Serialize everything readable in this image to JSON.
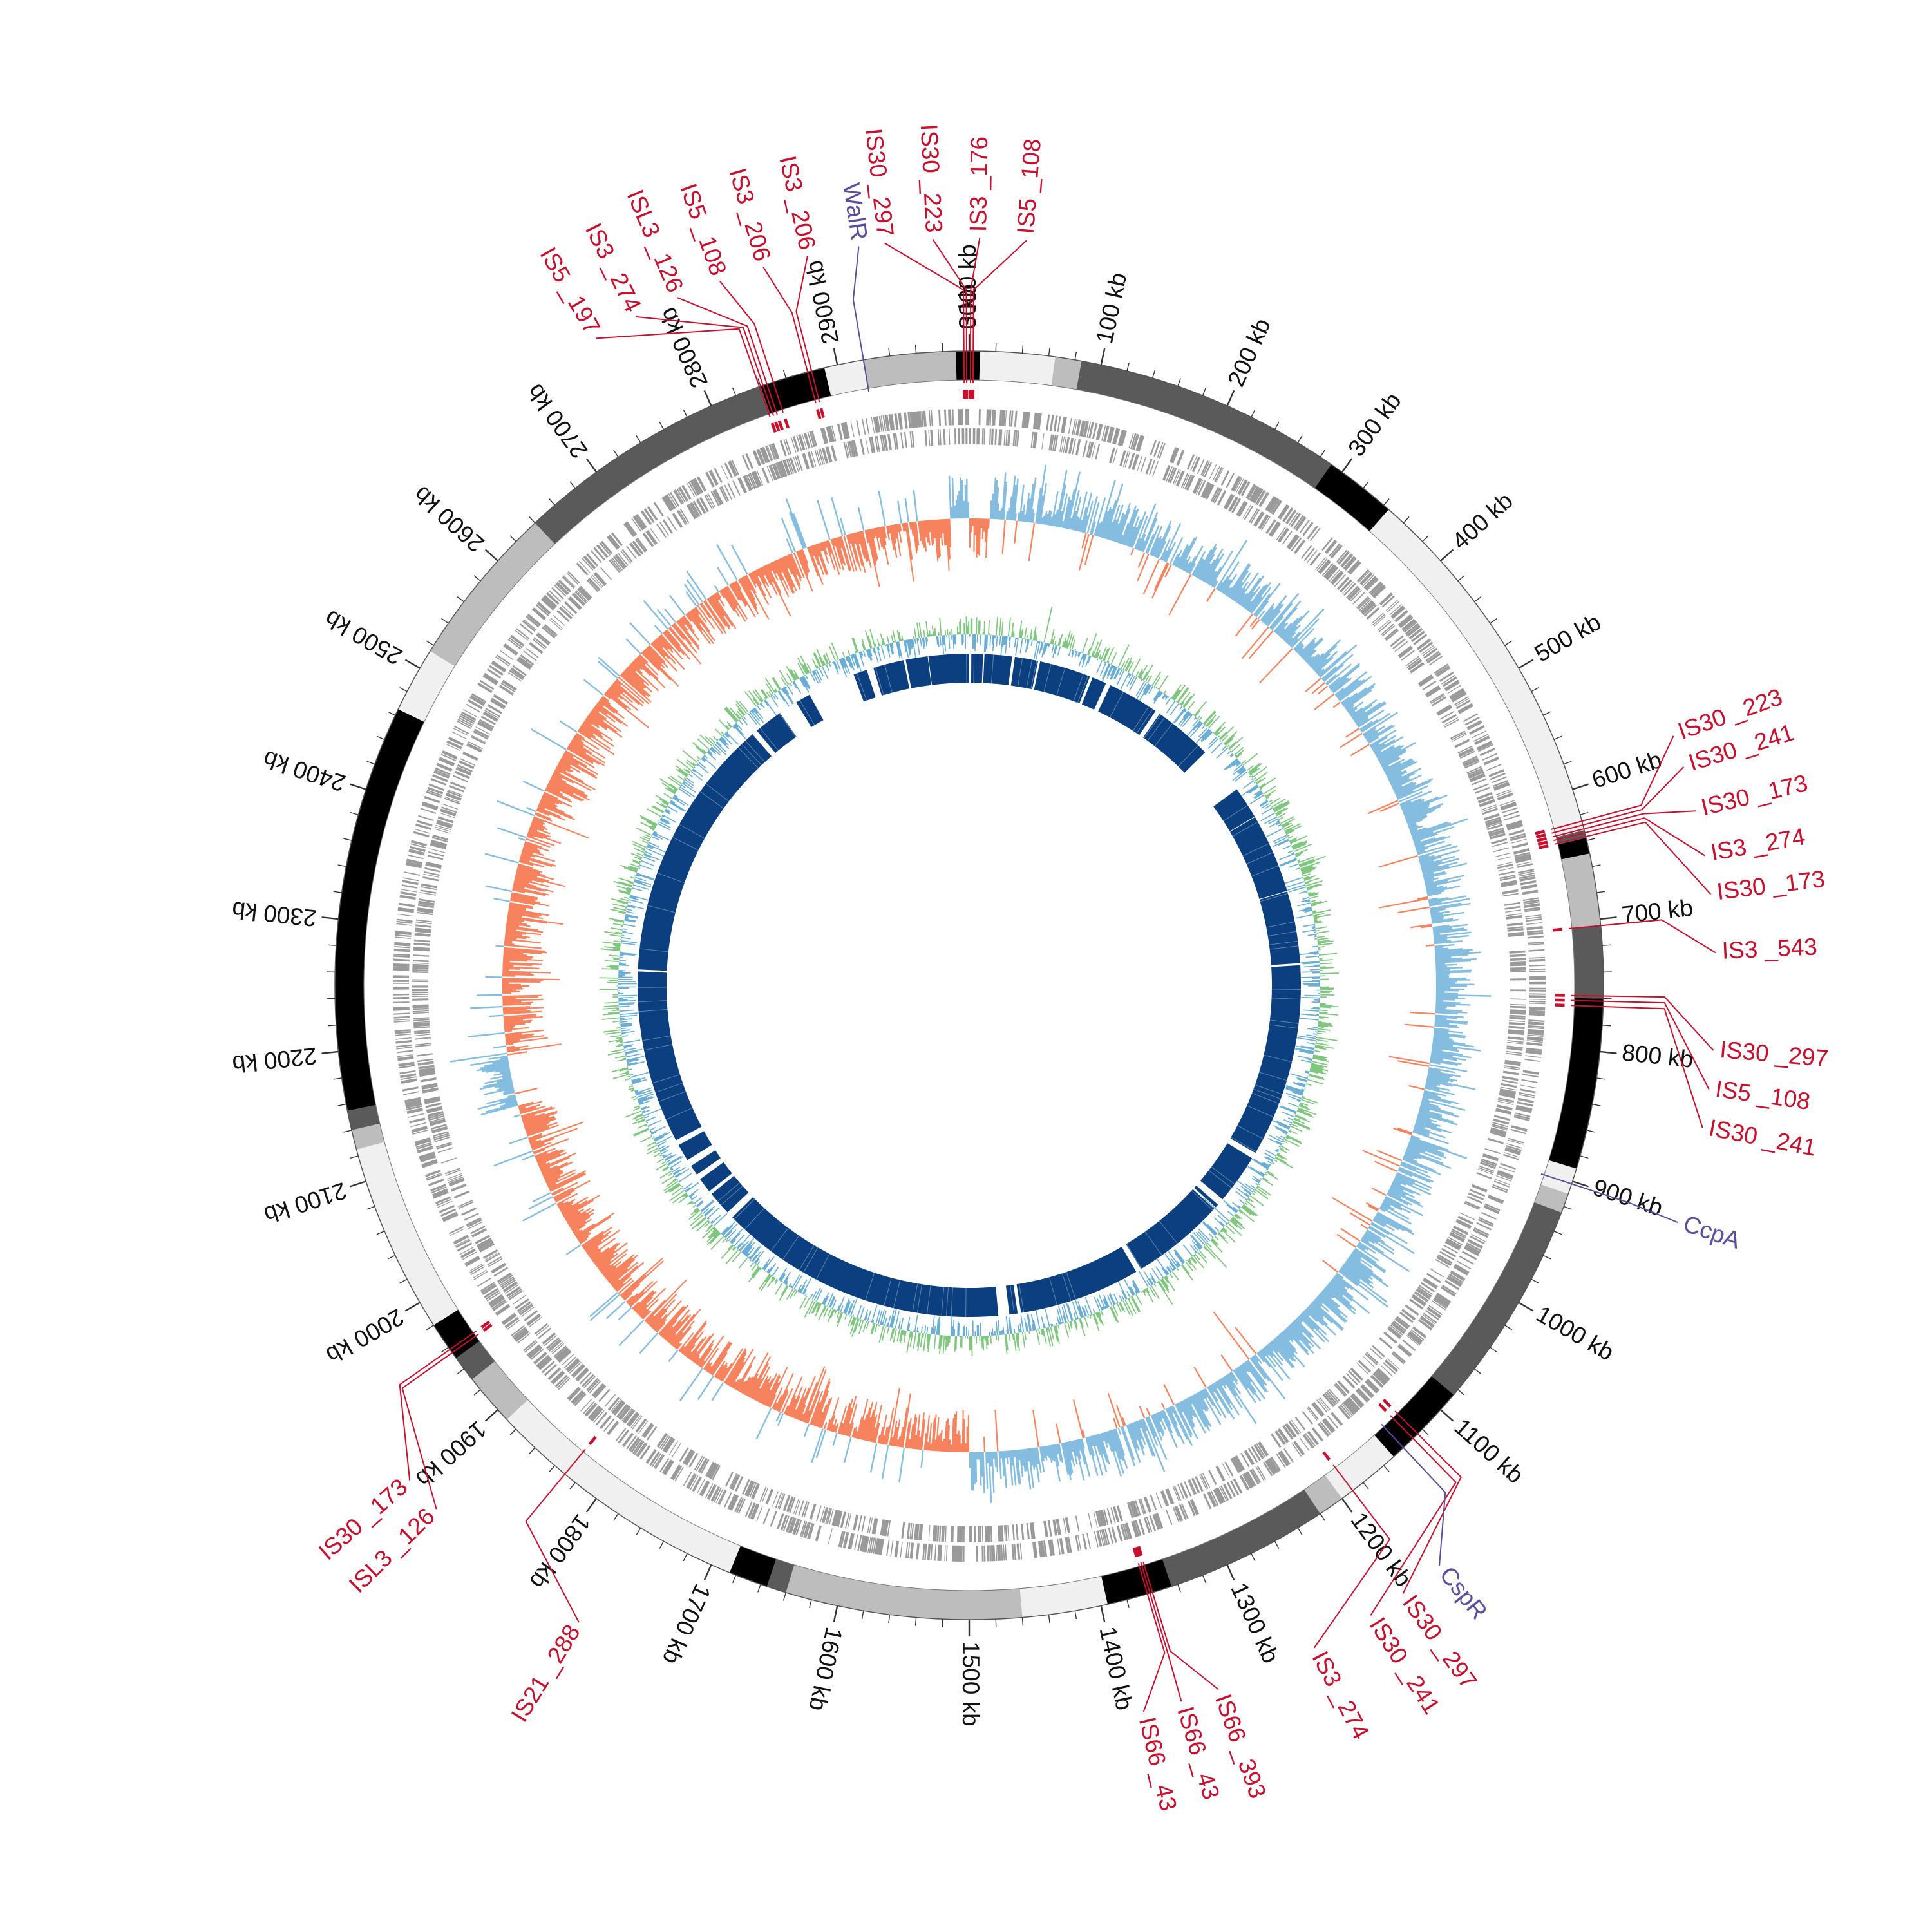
{
  "genome": {
    "length_kb": 3000,
    "tick_labels": [
      "0 kb",
      "100 kb",
      "200 kb",
      "300 kb",
      "400 kb",
      "500 kb",
      "600 kb",
      "700 kb",
      "800 kb",
      "900 kb",
      "1000 kb",
      "1100 kb",
      "1200 kb",
      "1300 kb",
      "1400 kb",
      "1500 kb",
      "1600 kb",
      "1700 kb",
      "1800 kb",
      "1900 kb",
      "2000 kb",
      "2100 kb",
      "2200 kb",
      "2300 kb",
      "2400 kb",
      "2500 kb",
      "2600 kb",
      "2700 kb",
      "2800 kb",
      "2900 kb",
      "3000 kb"
    ],
    "major_tick_step_kb": 100,
    "minor_tick_step_kb": 20
  },
  "colors": {
    "segment_palette": [
      "#000000",
      "#5a5a5a",
      "#bdbdbd",
      "#f0f0f0"
    ],
    "is_element": "#c8102e",
    "regulator": "#5b4ea1",
    "gene_track": "#9a9a9a",
    "skew_positive": "#85bde0",
    "skew_negative": "#f7825e",
    "gc_green": "#7fc77f",
    "gc_blue": "#6aaed6",
    "core_blocks": "#0b3f80"
  },
  "segments": [
    {
      "start": 0,
      "end": 8,
      "shade": 0
    },
    {
      "start": 8,
      "end": 65,
      "shade": 3
    },
    {
      "start": 65,
      "end": 85,
      "shade": 2
    },
    {
      "start": 85,
      "end": 290,
      "shade": 1
    },
    {
      "start": 290,
      "end": 345,
      "shade": 0
    },
    {
      "start": 345,
      "end": 632,
      "shade": 3
    },
    {
      "start": 632,
      "end": 638,
      "shade": 1
    },
    {
      "start": 638,
      "end": 650,
      "shade": 0
    },
    {
      "start": 650,
      "end": 705,
      "shade": 2
    },
    {
      "start": 705,
      "end": 760,
      "shade": 1
    },
    {
      "start": 760,
      "end": 890,
      "shade": 0
    },
    {
      "start": 890,
      "end": 910,
      "shade": 3
    },
    {
      "start": 910,
      "end": 925,
      "shade": 2
    },
    {
      "start": 925,
      "end": 1085,
      "shade": 1
    },
    {
      "start": 1085,
      "end": 1150,
      "shade": 0
    },
    {
      "start": 1150,
      "end": 1200,
      "shade": 3
    },
    {
      "start": 1200,
      "end": 1220,
      "shade": 2
    },
    {
      "start": 1220,
      "end": 1345,
      "shade": 1
    },
    {
      "start": 1345,
      "end": 1395,
      "shade": 0
    },
    {
      "start": 1395,
      "end": 1460,
      "shade": 3
    },
    {
      "start": 1460,
      "end": 1640,
      "shade": 2
    },
    {
      "start": 1640,
      "end": 1655,
      "shade": 1
    },
    {
      "start": 1655,
      "end": 1685,
      "shade": 0
    },
    {
      "start": 1685,
      "end": 1890,
      "shade": 3
    },
    {
      "start": 1890,
      "end": 1930,
      "shade": 2
    },
    {
      "start": 1930,
      "end": 1950,
      "shade": 1
    },
    {
      "start": 1950,
      "end": 1980,
      "shade": 0
    },
    {
      "start": 1980,
      "end": 2125,
      "shade": 3
    },
    {
      "start": 2125,
      "end": 2140,
      "shade": 2
    },
    {
      "start": 2140,
      "end": 2155,
      "shade": 1
    },
    {
      "start": 2155,
      "end": 2465,
      "shade": 0
    },
    {
      "start": 2465,
      "end": 2515,
      "shade": 3
    },
    {
      "start": 2515,
      "end": 2640,
      "shade": 2
    },
    {
      "start": 2640,
      "end": 2840,
      "shade": 1
    },
    {
      "start": 2840,
      "end": 2890,
      "shade": 0
    },
    {
      "start": 2890,
      "end": 2920,
      "shade": 3
    },
    {
      "start": 2920,
      "end": 2990,
      "shade": 2
    },
    {
      "start": 2990,
      "end": 3000,
      "shade": 0
    }
  ],
  "is_elements": [
    {
      "label": "IS30 _297",
      "pos": 2996,
      "label_angle": -6.5
    },
    {
      "label": "IS30 _223",
      "pos": 2998,
      "label_angle": -2.8
    },
    {
      "label": "IS3 _176",
      "pos": 1,
      "label_angle": 0.8
    },
    {
      "label": "IS5 _108",
      "pos": 3,
      "label_angle": 4.4
    },
    {
      "label": "IS3 _206",
      "pos": 2880,
      "label_angle": -12.5
    },
    {
      "label": "IS3 _206",
      "pos": 2877,
      "label_angle": -16.0
    },
    {
      "label": "IS5 _108",
      "pos": 2850,
      "label_angle": -19.5
    },
    {
      "label": "ISL3 _126",
      "pos": 2845,
      "label_angle": -23.0
    },
    {
      "label": "IS3 _274",
      "pos": 2842,
      "label_angle": -26.5
    },
    {
      "label": "IS5 _197",
      "pos": 2839,
      "label_angle": -30.0
    },
    {
      "label": "IS30 _223",
      "pos": 625,
      "label_angle": 70.5
    },
    {
      "label": "IS30 _241",
      "pos": 628,
      "label_angle": 73.0
    },
    {
      "label": "IS30 _173",
      "pos": 631,
      "label_angle": 76.5
    },
    {
      "label": "IS3 _274",
      "pos": 634,
      "label_angle": 80.0
    },
    {
      "label": "IS30 _173",
      "pos": 637,
      "label_angle": 83.0
    },
    {
      "label": "IS3 _543",
      "pos": 705,
      "label_angle": 87.5
    },
    {
      "label": "IS30 _297",
      "pos": 758,
      "label_angle": 95.0
    },
    {
      "label": "IS5 _108",
      "pos": 762,
      "label_angle": 98.0
    },
    {
      "label": "IS30 _241",
      "pos": 766,
      "label_angle": 101.0
    },
    {
      "label": "IS30 _297",
      "pos": 1125,
      "label_angle": 144.5
    },
    {
      "label": "IS30 _241",
      "pos": 1130,
      "label_angle": 147.5
    },
    {
      "label": "IS3 _274",
      "pos": 1190,
      "label_angle": 152.5
    },
    {
      "label": "IS66 _393",
      "pos": 1360,
      "label_angle": 160.5
    },
    {
      "label": "IS66 _43",
      "pos": 1362,
      "label_angle": 163.5
    },
    {
      "label": "IS66 _43",
      "pos": 1364,
      "label_angle": 166.5
    },
    {
      "label": "IS21 _288",
      "pos": 1830,
      "label_angle": 211.5
    },
    {
      "label": "ISL3 _126",
      "pos": 1955,
      "label_angle": 225.5
    },
    {
      "label": "IS30 _173",
      "pos": 1958,
      "label_angle": 228.5
    }
  ],
  "regulators": [
    {
      "label": "WalR",
      "pos": 2920,
      "label_angle": -8.5
    },
    {
      "label": "CcpA",
      "pos": 902,
      "label_angle": 108.5
    },
    {
      "label": "CspR",
      "pos": 1140,
      "label_angle": 141.0
    }
  ],
  "core_gaps": [
    {
      "start": 0,
      "end": 3
    },
    {
      "start": 20,
      "end": 22
    },
    {
      "start": 62,
      "end": 66
    },
    {
      "start": 100,
      "end": 103
    },
    {
      "start": 178,
      "end": 182
    },
    {
      "start": 203,
      "end": 210
    },
    {
      "start": 285,
      "end": 292
    },
    {
      "start": 378,
      "end": 448
    },
    {
      "start": 495,
      "end": 496
    },
    {
      "start": 612,
      "end": 613
    },
    {
      "start": 718,
      "end": 721
    },
    {
      "start": 1003,
      "end": 1012
    },
    {
      "start": 1085,
      "end": 1095
    },
    {
      "start": 1100,
      "end": 1103
    },
    {
      "start": 1240,
      "end": 1248
    },
    {
      "start": 1425,
      "end": 1430
    },
    {
      "start": 1442,
      "end": 1458
    },
    {
      "start": 1880,
      "end": 1890
    },
    {
      "start": 1925,
      "end": 1930
    },
    {
      "start": 1952,
      "end": 1960
    },
    {
      "start": 1975,
      "end": 1985
    },
    {
      "start": 2010,
      "end": 2018
    },
    {
      "start": 2270,
      "end": 2273
    },
    {
      "start": 2660,
      "end": 2668
    },
    {
      "start": 2710,
      "end": 2738
    },
    {
      "start": 2760,
      "end": 2830
    },
    {
      "start": 2850,
      "end": 2860
    },
    {
      "start": 2905,
      "end": 2908
    },
    {
      "start": 2940,
      "end": 2941
    }
  ],
  "skew_profile": [
    {
      "from": 0,
      "to": 20,
      "dir": -1
    },
    {
      "from": 20,
      "to": 1500,
      "dir": 1
    },
    {
      "from": 1500,
      "to": 2125,
      "dir": -1
    },
    {
      "from": 2125,
      "to": 2180,
      "dir": 1
    },
    {
      "from": 2180,
      "to": 2980,
      "dir": -1
    },
    {
      "from": 2980,
      "to": 3000,
      "dir": 1
    }
  ]
}
